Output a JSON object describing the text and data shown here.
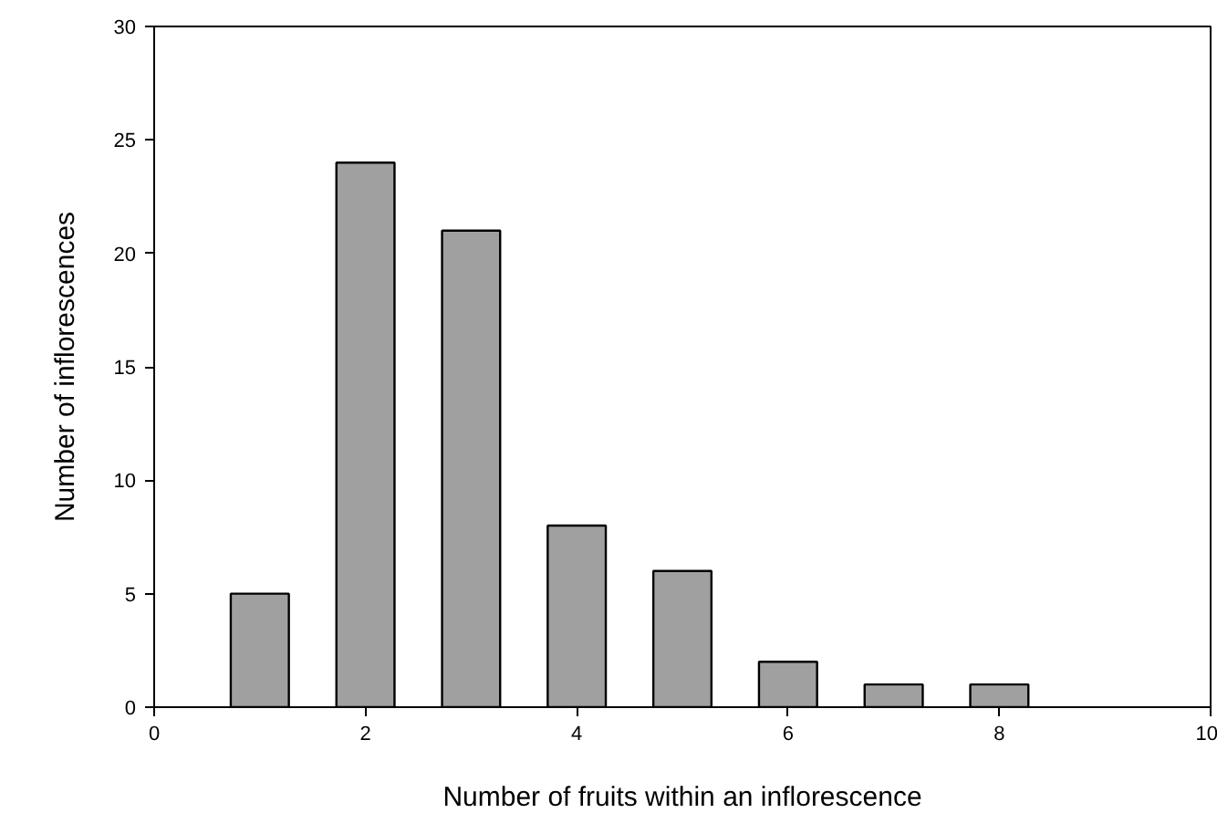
{
  "chart_data": {
    "type": "bar",
    "xlabel": "Number of fruits within an inflorescence",
    "ylabel": "Number of inflorescences",
    "x": [
      1,
      2,
      3,
      4,
      5,
      6,
      7,
      8
    ],
    "values": [
      5,
      24,
      21,
      8,
      6,
      2,
      1,
      1
    ],
    "color": "#a0a0a0",
    "xlim": [
      0,
      10
    ],
    "ylim": [
      0,
      30
    ],
    "xticks": [
      0,
      2,
      4,
      6,
      8,
      10
    ],
    "yticks": [
      0,
      5,
      10,
      15,
      20,
      25,
      30
    ],
    "grid": false
  }
}
